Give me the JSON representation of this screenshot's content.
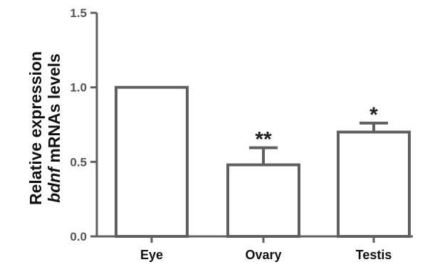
{
  "chart_data": {
    "type": "bar",
    "categories": [
      "Eye",
      "Ovary",
      "Testis"
    ],
    "values": [
      1.0,
      0.48,
      0.7
    ],
    "error": [
      0.0,
      0.115,
      0.06
    ],
    "significance": [
      "",
      "**",
      "*"
    ],
    "ylabel_line1": "Relative expression",
    "ylabel_line2_italic": "bdnf",
    "ylabel_line2_rest": " mRNAs levels",
    "ylim": [
      0,
      1.5
    ],
    "yticks": [
      0,
      0.5,
      1.0,
      1.5
    ],
    "ytick_labels": [
      "0.0",
      "0.5",
      "1.0",
      "1.5"
    ],
    "grid": false,
    "bar_fill": "#ffffff",
    "stroke_color": "#5f5f5f"
  }
}
